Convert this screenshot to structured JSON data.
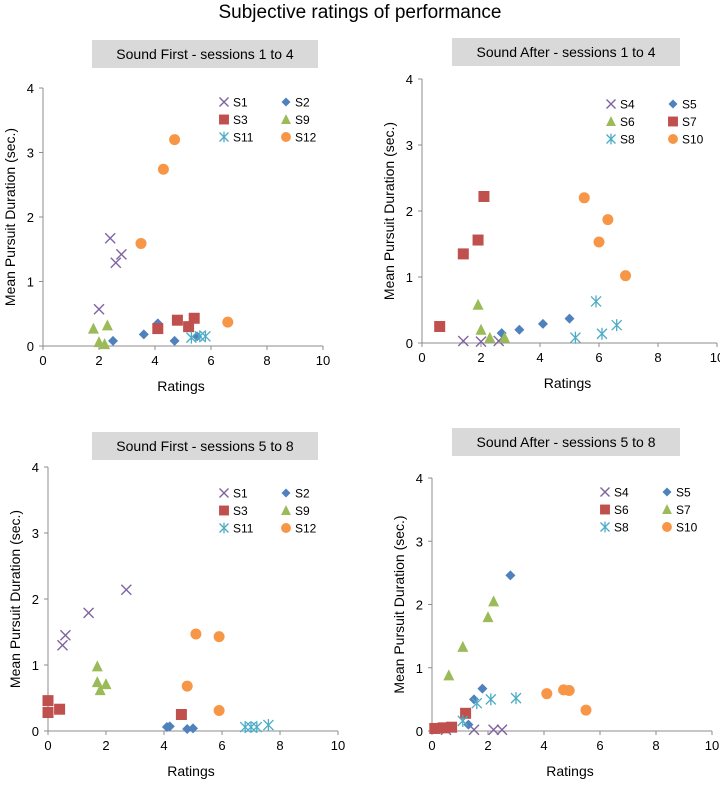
{
  "figure": {
    "title": "Subjective ratings of performance"
  },
  "colors": {
    "purple": "#8064a2",
    "blue": "#4f81bd",
    "red": "#c0504d",
    "green": "#9bbb59",
    "cyan": "#4bacc6",
    "orange": "#f79646",
    "title_box": "#d9d9d9"
  },
  "chart_data": [
    {
      "type": "scatter",
      "title": "Sound First - sessions 1 to 4",
      "xlabel": "Ratings",
      "ylabel": "Mean Pursuit Duration (sec.)",
      "xlim": [
        0,
        10
      ],
      "ylim": [
        0,
        4
      ],
      "xticks": [
        "0",
        "2",
        "4",
        "6",
        "8",
        "10"
      ],
      "yticks": [
        "0",
        "1",
        "2",
        "3",
        "4"
      ],
      "series": [
        {
          "name": "S1",
          "marker": "x",
          "color": "#8064a2",
          "points": [
            [
              2.0,
              0.57
            ],
            [
              2.4,
              1.67
            ],
            [
              2.6,
              1.29
            ],
            [
              2.8,
              1.42
            ]
          ]
        },
        {
          "name": "S2",
          "marker": "diamond",
          "color": "#4f81bd",
          "points": [
            [
              2.5,
              0.08
            ],
            [
              3.6,
              0.18
            ],
            [
              4.1,
              0.35
            ],
            [
              4.7,
              0.08
            ],
            [
              5.5,
              0.15
            ]
          ]
        },
        {
          "name": "S3",
          "marker": "square",
          "color": "#c0504d",
          "points": [
            [
              4.1,
              0.27
            ],
            [
              4.8,
              0.4
            ],
            [
              5.2,
              0.3
            ],
            [
              5.4,
              0.43
            ]
          ]
        },
        {
          "name": "S9",
          "marker": "triangle",
          "color": "#9bbb59",
          "points": [
            [
              1.8,
              0.27
            ],
            [
              2.0,
              0.06
            ],
            [
              2.2,
              0.03
            ],
            [
              2.3,
              0.32
            ]
          ]
        },
        {
          "name": "S11",
          "marker": "asterisk",
          "color": "#4bacc6",
          "points": [
            [
              5.3,
              0.13
            ],
            [
              5.6,
              0.15
            ],
            [
              5.8,
              0.15
            ]
          ]
        },
        {
          "name": "S12",
          "marker": "circle",
          "color": "#f79646",
          "points": [
            [
              3.5,
              1.59
            ],
            [
              4.3,
              2.74
            ],
            [
              4.7,
              3.2
            ],
            [
              6.6,
              0.37
            ]
          ]
        }
      ]
    },
    {
      "type": "scatter",
      "title": "Sound After - sessions 1 to 4",
      "xlabel": "Ratings",
      "ylabel": "Mean Pursuit Duration (sec.)",
      "xlim": [
        0,
        10
      ],
      "ylim": [
        0,
        4
      ],
      "xticks": [
        "0",
        "2",
        "4",
        "6",
        "8",
        "10"
      ],
      "yticks": [
        "0",
        "1",
        "2",
        "3",
        "4"
      ],
      "series": [
        {
          "name": "S4",
          "marker": "x",
          "color": "#8064a2",
          "points": [
            [
              1.4,
              0.03
            ],
            [
              2.0,
              0.02
            ],
            [
              2.6,
              0.03
            ]
          ]
        },
        {
          "name": "S5",
          "marker": "diamond",
          "color": "#4f81bd",
          "points": [
            [
              2.7,
              0.15
            ],
            [
              3.3,
              0.2
            ],
            [
              4.1,
              0.29
            ],
            [
              5.0,
              0.37
            ]
          ]
        },
        {
          "name": "S6",
          "marker": "triangle",
          "color": "#9bbb59",
          "points": [
            [
              1.9,
              0.58
            ],
            [
              2.0,
              0.2
            ],
            [
              2.3,
              0.08
            ],
            [
              2.8,
              0.08
            ]
          ]
        },
        {
          "name": "S7",
          "marker": "square",
          "color": "#c0504d",
          "points": [
            [
              0.6,
              0.25
            ],
            [
              1.4,
              1.35
            ],
            [
              1.9,
              1.56
            ],
            [
              2.1,
              2.22
            ]
          ]
        },
        {
          "name": "S8",
          "marker": "asterisk",
          "color": "#4bacc6",
          "points": [
            [
              5.2,
              0.08
            ],
            [
              5.9,
              0.63
            ],
            [
              6.1,
              0.14
            ],
            [
              6.6,
              0.27
            ]
          ]
        },
        {
          "name": "S10",
          "marker": "circle",
          "color": "#f79646",
          "points": [
            [
              5.5,
              2.2
            ],
            [
              6.0,
              1.53
            ],
            [
              6.3,
              1.87
            ],
            [
              6.9,
              1.02
            ]
          ]
        }
      ]
    },
    {
      "type": "scatter",
      "title": "Sound First - sessions 5 to 8",
      "xlabel": "Ratings",
      "ylabel": "Mean Pursuit Duration (sec.)",
      "xlim": [
        0,
        10
      ],
      "ylim": [
        0,
        4
      ],
      "xticks": [
        "0",
        "2",
        "4",
        "6",
        "8",
        "10"
      ],
      "yticks": [
        "0",
        "1",
        "2",
        "3",
        "4"
      ],
      "series": [
        {
          "name": "S1",
          "marker": "x",
          "color": "#8064a2",
          "points": [
            [
              0.5,
              1.3
            ],
            [
              0.6,
              1.45
            ],
            [
              1.4,
              1.79
            ],
            [
              2.7,
              2.14
            ]
          ]
        },
        {
          "name": "S2",
          "marker": "diamond",
          "color": "#4f81bd",
          "points": [
            [
              4.1,
              0.06
            ],
            [
              4.2,
              0.07
            ],
            [
              4.8,
              0.03
            ],
            [
              5.0,
              0.04
            ]
          ]
        },
        {
          "name": "S3",
          "marker": "square",
          "color": "#c0504d",
          "points": [
            [
              0.0,
              0.28
            ],
            [
              0.0,
              0.46
            ],
            [
              0.4,
              0.33
            ],
            [
              4.6,
              0.25
            ]
          ]
        },
        {
          "name": "S9",
          "marker": "triangle",
          "color": "#9bbb59",
          "points": [
            [
              1.7,
              0.98
            ],
            [
              1.7,
              0.74
            ],
            [
              1.8,
              0.62
            ],
            [
              2.0,
              0.71
            ]
          ]
        },
        {
          "name": "S11",
          "marker": "asterisk",
          "color": "#4bacc6",
          "points": [
            [
              6.8,
              0.06
            ],
            [
              7.0,
              0.06
            ],
            [
              7.2,
              0.06
            ],
            [
              7.6,
              0.09
            ]
          ]
        },
        {
          "name": "S12",
          "marker": "circle",
          "color": "#f79646",
          "points": [
            [
              4.8,
              0.68
            ],
            [
              5.1,
              1.47
            ],
            [
              5.9,
              1.43
            ],
            [
              5.9,
              0.31
            ]
          ]
        }
      ]
    },
    {
      "type": "scatter",
      "title": "Sound After - sessions 5 to 8",
      "xlabel": "Ratings",
      "ylabel": "Mean Pursuit Duration (sec.)",
      "xlim": [
        0,
        10
      ],
      "ylim": [
        0,
        4
      ],
      "xticks": [
        "0",
        "2",
        "4",
        "6",
        "8",
        "10"
      ],
      "yticks": [
        "0",
        "1",
        "2",
        "3",
        "4"
      ],
      "series": [
        {
          "name": "S4",
          "marker": "x",
          "color": "#8064a2",
          "points": [
            [
              0.5,
              0.02
            ],
            [
              1.5,
              0.02
            ],
            [
              2.2,
              0.02
            ],
            [
              2.5,
              0.02
            ]
          ]
        },
        {
          "name": "S5",
          "marker": "diamond",
          "color": "#4f81bd",
          "points": [
            [
              1.3,
              0.1
            ],
            [
              1.5,
              0.5
            ],
            [
              1.8,
              0.67
            ],
            [
              2.8,
              2.46
            ]
          ]
        },
        {
          "name": "S6",
          "marker": "square",
          "color": "#c0504d",
          "points": [
            [
              0.1,
              0.04
            ],
            [
              0.4,
              0.05
            ],
            [
              0.7,
              0.06
            ],
            [
              1.2,
              0.28
            ]
          ]
        },
        {
          "name": "S7",
          "marker": "triangle",
          "color": "#9bbb59",
          "points": [
            [
              0.6,
              0.88
            ],
            [
              1.1,
              1.33
            ],
            [
              2.0,
              1.8
            ],
            [
              2.2,
              2.05
            ]
          ]
        },
        {
          "name": "S8",
          "marker": "asterisk",
          "color": "#4bacc6",
          "points": [
            [
              1.1,
              0.16
            ],
            [
              1.6,
              0.44
            ],
            [
              2.1,
              0.5
            ],
            [
              3.0,
              0.52
            ]
          ]
        },
        {
          "name": "S10",
          "marker": "circle",
          "color": "#f79646",
          "points": [
            [
              4.1,
              0.59
            ],
            [
              4.7,
              0.65
            ],
            [
              4.9,
              0.64
            ],
            [
              5.5,
              0.33
            ]
          ]
        }
      ]
    }
  ]
}
